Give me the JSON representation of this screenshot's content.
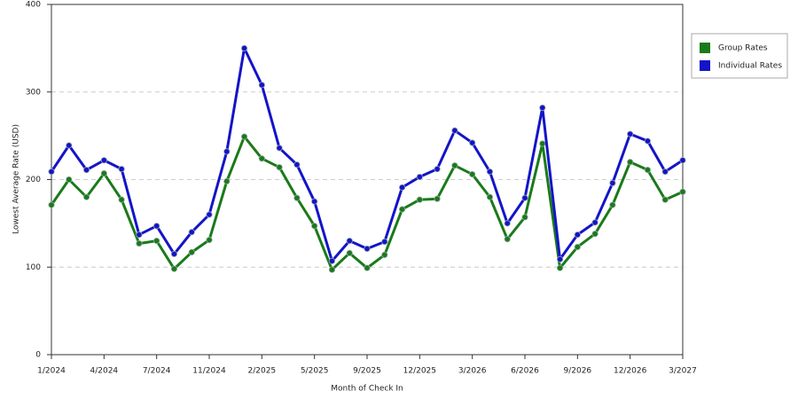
{
  "chart_data": {
    "type": "line",
    "x_label": "Month of Check In",
    "y_label": "Lowest Average Rate (USD)",
    "categories": [
      "1/2024",
      null,
      null,
      "4/2024",
      null,
      null,
      "7/2024",
      null,
      null,
      "11/2024",
      null,
      null,
      "2/2025",
      null,
      null,
      "5/2025",
      null,
      null,
      "9/2025",
      null,
      null,
      "12/2025",
      null,
      null,
      "3/2026",
      null,
      null,
      "6/2026",
      null,
      null,
      "9/2026",
      null,
      null,
      "12/2026",
      null,
      null,
      "3/2027"
    ],
    "series": [
      {
        "name": "Group Rates",
        "color": "#1a7a1a",
        "values": [
          171,
          200,
          180,
          207,
          177,
          127,
          130,
          98,
          117,
          131,
          198,
          249,
          224,
          214,
          179,
          147,
          97,
          116,
          99,
          114,
          166,
          177,
          178,
          216,
          206,
          180,
          132,
          157,
          241,
          99,
          123,
          138,
          171,
          220,
          211,
          177,
          186
        ]
      },
      {
        "name": "Individual Rates",
        "color": "#1414c8",
        "values": [
          209,
          239,
          211,
          222,
          212,
          137,
          147,
          115,
          140,
          160,
          232,
          350,
          308,
          236,
          217,
          175,
          107,
          130,
          121,
          129,
          191,
          203,
          212,
          256,
          242,
          209,
          150,
          179,
          282,
          109,
          137,
          151,
          196,
          252,
          244,
          209,
          222
        ]
      }
    ],
    "ylim": [
      0,
      400
    ],
    "yticks": [
      0,
      100,
      200,
      300,
      400
    ],
    "grid": true
  }
}
